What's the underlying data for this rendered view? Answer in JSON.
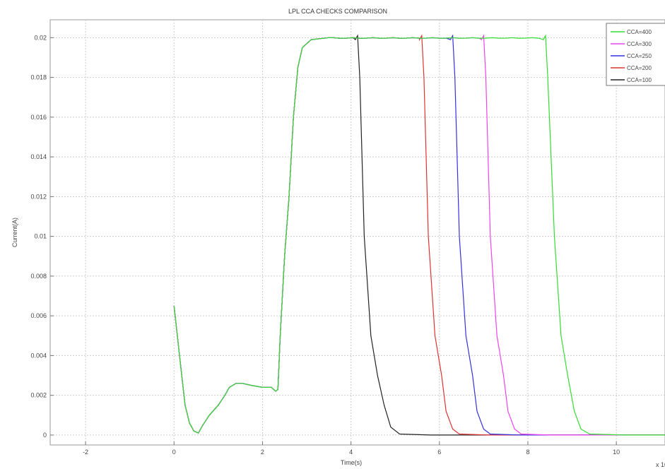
{
  "chart_data": {
    "type": "line",
    "title": "LPL CCA CHECKS COMPARISON",
    "xlabel": "Time(s)",
    "ylabel": "Current(A)",
    "x_multiplier": "x 10",
    "xlim": [
      -2.8,
      11.1
    ],
    "ylim": [
      -0.0005,
      0.0209
    ],
    "xticks": [
      -2,
      0,
      2,
      4,
      6,
      8,
      10
    ],
    "xtick_labels": [
      "-2",
      "0",
      "2",
      "4",
      "6",
      "8",
      "10"
    ],
    "yticks": [
      0,
      0.002,
      0.004,
      0.006,
      0.008,
      0.01,
      0.012,
      0.014,
      0.016,
      0.018,
      0.02
    ],
    "ytick_labels": [
      "0",
      "0.002",
      "0.004",
      "0.006",
      "0.008",
      "0.01",
      "0.012",
      "0.014",
      "0.016",
      "0.018",
      "0.02"
    ],
    "grid": true,
    "legend_position": "top-right",
    "common_start": [
      [
        0,
        0.0065
      ],
      [
        0.05,
        0.0055
      ],
      [
        0.15,
        0.0035
      ],
      [
        0.25,
        0.0015
      ],
      [
        0.35,
        0.0006
      ],
      [
        0.45,
        0.0002
      ],
      [
        0.55,
        0.0001
      ],
      [
        0.65,
        0.0005
      ],
      [
        0.8,
        0.001
      ],
      [
        1.0,
        0.0015
      ],
      [
        1.15,
        0.002
      ],
      [
        1.25,
        0.0024
      ],
      [
        1.4,
        0.0026
      ],
      [
        1.55,
        0.0026
      ],
      [
        1.75,
        0.0025
      ],
      [
        2.0,
        0.0024
      ],
      [
        2.2,
        0.0024
      ],
      [
        2.3,
        0.0022
      ],
      [
        2.35,
        0.0023
      ],
      [
        2.4,
        0.005
      ],
      [
        2.5,
        0.009
      ],
      [
        2.6,
        0.012
      ],
      [
        2.7,
        0.016
      ],
      [
        2.8,
        0.0185
      ],
      [
        2.9,
        0.0195
      ],
      [
        3.1,
        0.0199
      ],
      [
        3.5,
        0.02
      ]
    ],
    "series": [
      {
        "name": "CCA=400",
        "color": "#33dd33",
        "drop_start": 8.4,
        "fall": [
          [
            8.45,
            0.018
          ],
          [
            8.6,
            0.01
          ],
          [
            8.75,
            0.005
          ],
          [
            8.9,
            0.003
          ],
          [
            9.05,
            0.0012
          ],
          [
            9.2,
            0.0003
          ],
          [
            9.4,
            5e-05
          ],
          [
            10.2,
            0
          ],
          [
            11.1,
            0
          ]
        ]
      },
      {
        "name": "CCA=300",
        "color": "#ee44ee",
        "drop_start": 7.0,
        "fall": [
          [
            7.05,
            0.018
          ],
          [
            7.15,
            0.01
          ],
          [
            7.3,
            0.005
          ],
          [
            7.45,
            0.003
          ],
          [
            7.55,
            0.0012
          ],
          [
            7.7,
            0.0003
          ],
          [
            7.85,
            5e-05
          ],
          [
            8.5,
            0
          ],
          [
            11.1,
            0
          ]
        ]
      },
      {
        "name": "CCA=250",
        "color": "#3333dd",
        "drop_start": 6.3,
        "fall": [
          [
            6.35,
            0.018
          ],
          [
            6.45,
            0.01
          ],
          [
            6.6,
            0.005
          ],
          [
            6.75,
            0.003
          ],
          [
            6.85,
            0.0012
          ],
          [
            7.0,
            0.0003
          ],
          [
            7.15,
            5e-05
          ],
          [
            7.8,
            0
          ],
          [
            11.1,
            0
          ]
        ]
      },
      {
        "name": "CCA=200",
        "color": "#dd3333",
        "drop_start": 5.6,
        "fall": [
          [
            5.65,
            0.018
          ],
          [
            5.75,
            0.01
          ],
          [
            5.9,
            0.005
          ],
          [
            6.05,
            0.003
          ],
          [
            6.15,
            0.0012
          ],
          [
            6.3,
            0.0003
          ],
          [
            6.45,
            5e-05
          ],
          [
            7.1,
            0
          ],
          [
            11.1,
            0
          ]
        ]
      },
      {
        "name": "CCA=100",
        "color": "#222222",
        "drop_start": 4.15,
        "fall": [
          [
            4.2,
            0.018
          ],
          [
            4.3,
            0.01
          ],
          [
            4.45,
            0.005
          ],
          [
            4.6,
            0.003
          ],
          [
            4.75,
            0.0015
          ],
          [
            4.9,
            0.0004
          ],
          [
            5.1,
            5e-05
          ],
          [
            5.8,
            0
          ],
          [
            11.1,
            0
          ]
        ]
      }
    ]
  }
}
